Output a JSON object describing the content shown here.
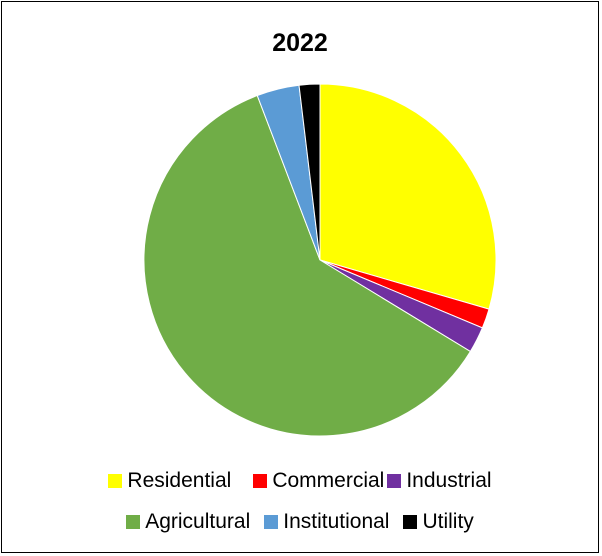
{
  "chart_data": {
    "type": "pie",
    "title": "2022",
    "legend_position": "bottom",
    "slices": [
      {
        "label": "Residential",
        "value": 29.5,
        "color": "#FFFF00"
      },
      {
        "label": "Commercial",
        "value": 1.8,
        "color": "#FF0000"
      },
      {
        "label": "Industrial",
        "value": 2.4,
        "color": "#7030A0"
      },
      {
        "label": "Agricultural",
        "value": 60.5,
        "color": "#70AD47"
      },
      {
        "label": "Institutional",
        "value": 3.9,
        "color": "#5B9BD5"
      },
      {
        "label": "Utility",
        "value": 1.9,
        "color": "#000000"
      }
    ]
  }
}
